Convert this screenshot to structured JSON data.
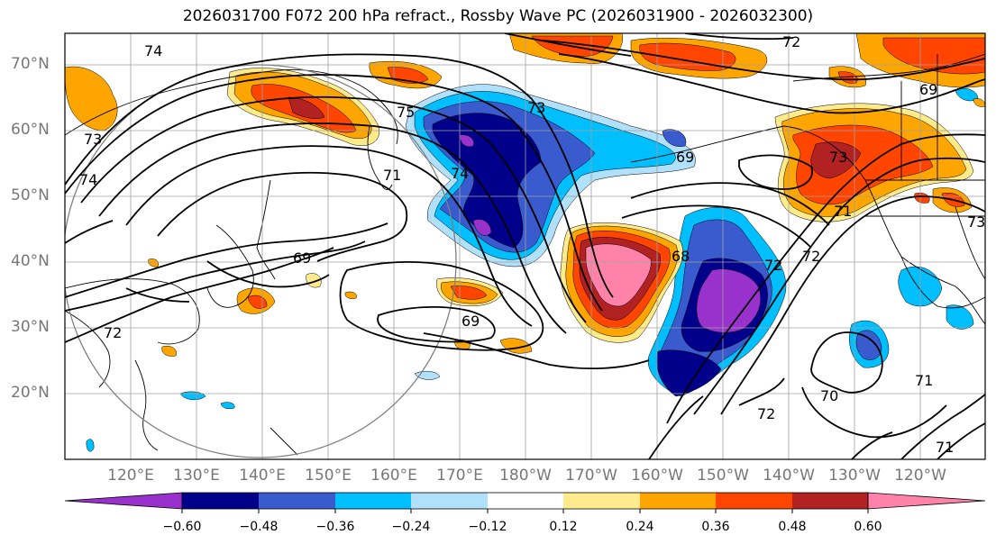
{
  "title": "2026031700 F072 200 hPa refract., Rossby Wave PC (2026031900 - 2026032300)",
  "lat_labels": [
    "70°N",
    "60°N",
    "50°N",
    "40°N",
    "30°N",
    "20°N"
  ],
  "lon_labels": [
    "120°E",
    "130°E",
    "140°E",
    "150°E",
    "160°E",
    "170°E",
    "180°W",
    "170°W",
    "160°W",
    "150°W",
    "140°W",
    "130°W",
    "120°W"
  ],
  "contour_labels": [
    "74",
    "72",
    "75",
    "73",
    "74",
    "73",
    "71",
    "74",
    "69",
    "69",
    "69",
    "73",
    "68",
    "69",
    "72",
    "71",
    "72",
    "73",
    "71",
    "70",
    "72",
    "71",
    "72"
  ],
  "colorbar": {
    "ticks": [
      "−0.60",
      "−0.48",
      "−0.36",
      "−0.24",
      "−0.12",
      "0.12",
      "0.24",
      "0.36",
      "0.48",
      "0.60"
    ],
    "colors": [
      "#9932cc",
      "#00008b",
      "#3a5bcd",
      "#00bfff",
      "#b0e0fa",
      "#ffffff",
      "#ffea8c",
      "#ffa500",
      "#ff4500",
      "#b22222",
      "#ff82ab"
    ]
  },
  "colors": {
    "coast": "#000000",
    "grid": "#a0a0a0",
    "axis_label": "#777777"
  }
}
